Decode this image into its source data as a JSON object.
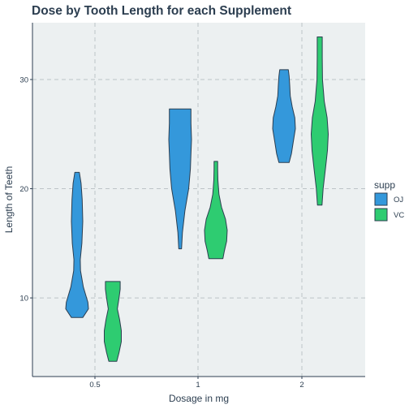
{
  "chart_data": {
    "type": "violin",
    "title": "Dose by Tooth Length for each Supplement",
    "xlabel": "Dosage in mg",
    "ylabel": "Length of Teeth",
    "categories": [
      "0.5",
      "1",
      "2"
    ],
    "y_ticks": [
      10,
      20,
      30
    ],
    "y_ticks_labels": [
      "10",
      "20",
      "30"
    ],
    "ylim": [
      2.8,
      35.2
    ],
    "grid": true,
    "legend": {
      "title": "supp",
      "placement": "right"
    },
    "series": [
      {
        "name": "OJ",
        "color": "#3498db",
        "violins": [
          {
            "category": "0.5",
            "min": 8.2,
            "max": 21.5,
            "profile": [
              [
                8.2,
                0.5
              ],
              [
                9.0,
                1.0
              ],
              [
                9.6,
                0.95
              ],
              [
                11.0,
                0.55
              ],
              [
                12.5,
                0.3
              ],
              [
                13.5,
                0.28
              ],
              [
                15.0,
                0.42
              ],
              [
                17.0,
                0.5
              ],
              [
                19.0,
                0.45
              ],
              [
                20.5,
                0.35
              ],
              [
                21.5,
                0.2
              ]
            ]
          },
          {
            "category": "1",
            "min": 14.5,
            "max": 27.3,
            "profile": [
              [
                14.5,
                0.12
              ],
              [
                16.0,
                0.2
              ],
              [
                18.0,
                0.42
              ],
              [
                20.0,
                0.75
              ],
              [
                21.8,
                0.9
              ],
              [
                23.2,
                0.95
              ],
              [
                24.5,
                1.0
              ],
              [
                26.0,
                0.95
              ],
              [
                27.3,
                0.95
              ]
            ]
          },
          {
            "category": "2",
            "min": 22.4,
            "max": 30.9,
            "profile": [
              [
                22.4,
                0.45
              ],
              [
                23.2,
                0.65
              ],
              [
                24.2,
                0.8
              ],
              [
                25.5,
                1.0
              ],
              [
                26.5,
                0.95
              ],
              [
                27.5,
                0.72
              ],
              [
                28.5,
                0.55
              ],
              [
                29.5,
                0.5
              ],
              [
                30.3,
                0.45
              ],
              [
                30.9,
                0.38
              ]
            ]
          }
        ]
      },
      {
        "name": "VC",
        "color": "#2ecc71",
        "violins": [
          {
            "category": "0.5",
            "min": 4.2,
            "max": 11.5,
            "profile": [
              [
                4.2,
                0.35
              ],
              [
                5.0,
                0.55
              ],
              [
                6.0,
                0.75
              ],
              [
                7.0,
                0.75
              ],
              [
                8.0,
                0.6
              ],
              [
                9.0,
                0.4
              ],
              [
                10.0,
                0.55
              ],
              [
                10.8,
                0.65
              ],
              [
                11.5,
                0.65
              ]
            ]
          },
          {
            "category": "1",
            "min": 13.6,
            "max": 22.5,
            "profile": [
              [
                13.6,
                0.62
              ],
              [
                14.3,
                0.75
              ],
              [
                15.2,
                0.95
              ],
              [
                16.2,
                1.0
              ],
              [
                17.2,
                0.85
              ],
              [
                18.3,
                0.5
              ],
              [
                19.5,
                0.27
              ],
              [
                20.8,
                0.18
              ],
              [
                21.8,
                0.16
              ],
              [
                22.5,
                0.16
              ]
            ]
          },
          {
            "category": "2",
            "min": 18.5,
            "max": 33.9,
            "profile": [
              [
                18.5,
                0.2
              ],
              [
                20.0,
                0.3
              ],
              [
                22.0,
                0.52
              ],
              [
                23.5,
                0.68
              ],
              [
                25.0,
                0.75
              ],
              [
                26.5,
                0.65
              ],
              [
                28.0,
                0.4
              ],
              [
                30.0,
                0.24
              ],
              [
                32.0,
                0.22
              ],
              [
                33.9,
                0.22
              ]
            ]
          }
        ]
      }
    ]
  }
}
